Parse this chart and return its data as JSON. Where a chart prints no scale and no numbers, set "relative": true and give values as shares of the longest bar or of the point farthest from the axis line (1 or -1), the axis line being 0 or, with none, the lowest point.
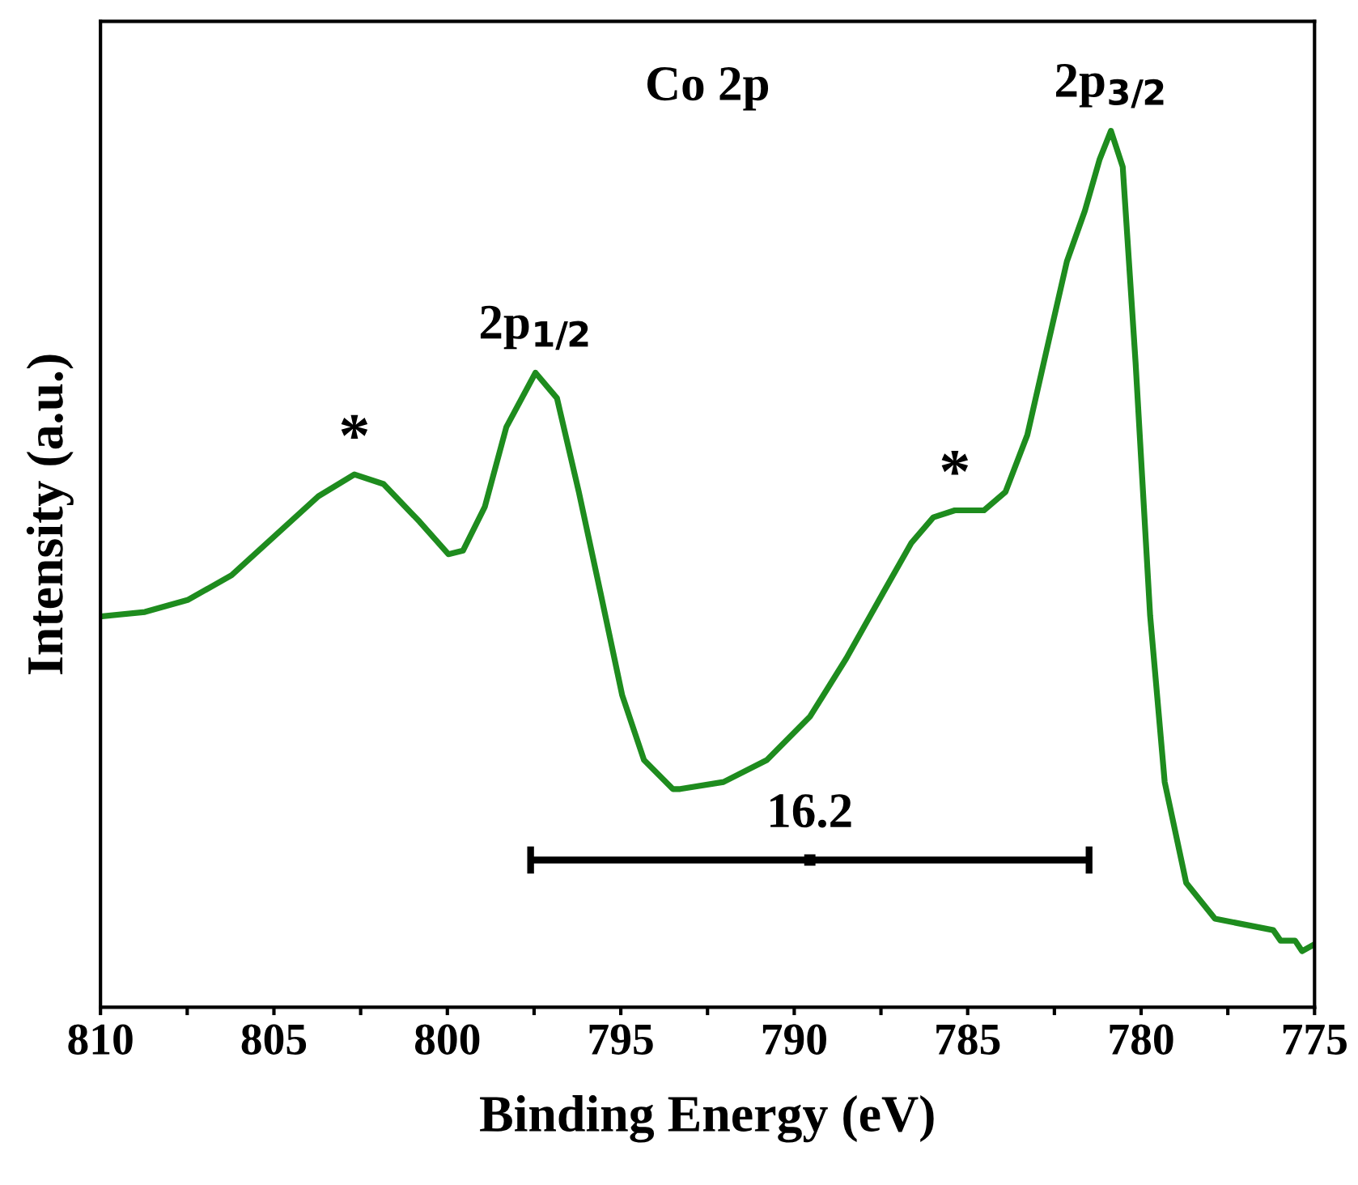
{
  "chart_data": {
    "type": "line",
    "relative": true,
    "title": "Co 2p",
    "xlabel": "Binding Energy (eV)",
    "ylabel": "Intensity (a.u.)",
    "xlim": [
      810,
      775
    ],
    "xticks": [
      810,
      {
        "value": 807.5,
        "label": null
      },
      805,
      {
        "value": 802.5,
        "label": null
      },
      800,
      {
        "value": 797.5,
        "label": null
      },
      795,
      {
        "value": 792.5,
        "label": null
      },
      790,
      {
        "value": 787.5,
        "label": null
      },
      785,
      {
        "value": 782.5,
        "label": null
      },
      780,
      {
        "value": 777.5,
        "label": null
      },
      775
    ],
    "grid": false,
    "legend": false,
    "marker": "none",
    "line_style": "solid",
    "tick_labels": "x",
    "series": [
      {
        "color": "#1e8c1e",
        "x": [
          810.0,
          808.72,
          807.47,
          806.22,
          804.97,
          803.72,
          802.68,
          801.84,
          800.8,
          799.97,
          799.55,
          798.92,
          798.3,
          797.46,
          796.84,
          796.21,
          795.58,
          794.96,
          794.33,
          793.5,
          793.29,
          792.04,
          790.79,
          789.54,
          788.5,
          787.45,
          786.62,
          785.99,
          785.37,
          784.53,
          783.91,
          783.28,
          782.66,
          782.14,
          781.62,
          781.2,
          780.87,
          780.53,
          780.16,
          779.74,
          779.32,
          778.7,
          777.87,
          776.19,
          775.98,
          775.56,
          775.36,
          775.0
        ],
        "values": [
          0.446,
          0.451,
          0.465,
          0.493,
          0.538,
          0.583,
          0.608,
          0.597,
          0.554,
          0.517,
          0.521,
          0.571,
          0.662,
          0.724,
          0.695,
          0.588,
          0.472,
          0.356,
          0.282,
          0.249,
          0.249,
          0.257,
          0.282,
          0.332,
          0.398,
          0.472,
          0.53,
          0.559,
          0.567,
          0.567,
          0.588,
          0.653,
          0.761,
          0.851,
          0.909,
          0.967,
          1.0,
          0.959,
          0.736,
          0.447,
          0.257,
          0.142,
          0.101,
          0.088,
          0.076,
          0.076,
          0.064,
          0.072
        ]
      },
      {
        "type": "scatter",
        "marker": "square",
        "color": "#000000",
        "x": [
          789.55
        ],
        "values": [
          0.168
        ],
        "xerrors": [
          8.05
        ]
      }
    ],
    "annotations": [
      {
        "text": "*",
        "x": 802.68,
        "y": 0.608
      },
      {
        "text": "2p$_{1/2}$",
        "x": 797.46,
        "y": 0.724
      },
      {
        "text": "*",
        "x": 785.37,
        "y": 0.567
      },
      {
        "text": "2p$_{3/2}$",
        "x": 780.87,
        "y": 1.0
      },
      {
        "text": "16.2",
        "x": 789.55,
        "y": 0.168
      }
    ]
  }
}
